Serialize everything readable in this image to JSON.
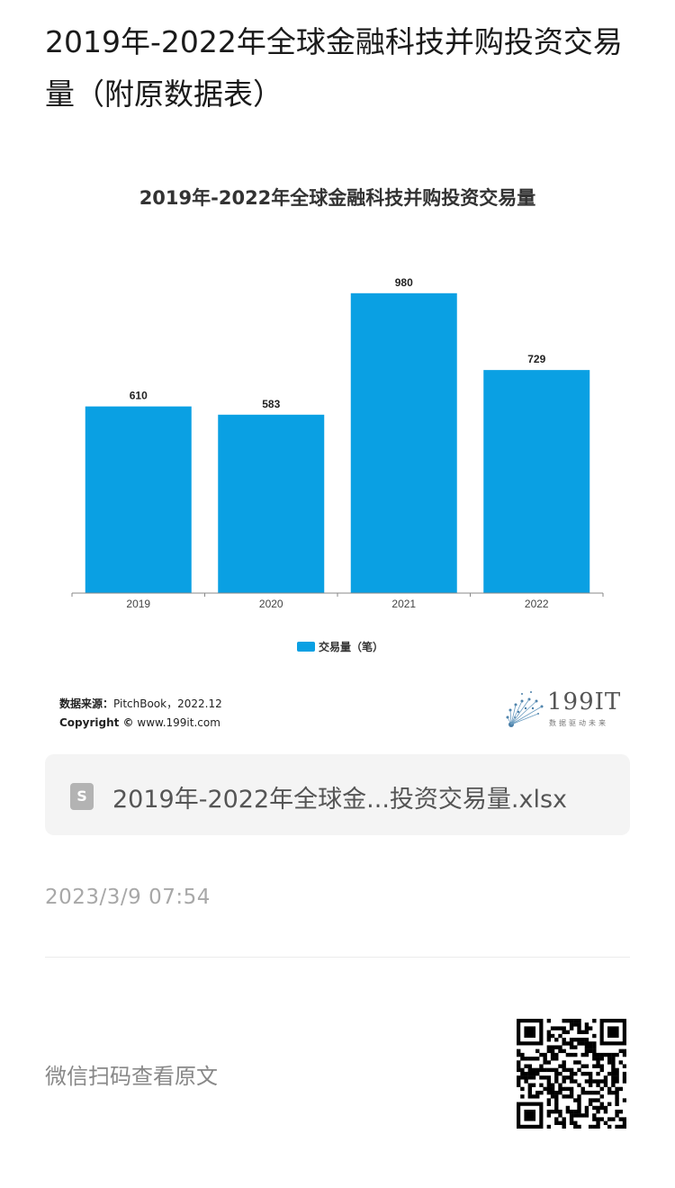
{
  "article": {
    "title": "2019年-2022年全球金融科技并购投资交易量（附原数据表）"
  },
  "chart": {
    "title": "2019年-2022年全球金融科技并购投资交易量",
    "legend_label": "交易量（笔）",
    "source_label": "数据来源：",
    "source_value": "PitchBook，2022.12",
    "copyright_label": "Copyright ©",
    "copyright_value": "www.199it.com",
    "brand_name": "199IT",
    "brand_tagline": "数据驱动未来",
    "bar_color": "#0aa0e3"
  },
  "chart_data": {
    "type": "bar",
    "title": "2019年-2022年全球金融科技并购投资交易量",
    "categories": [
      "2019",
      "2020",
      "2021",
      "2022"
    ],
    "series": [
      {
        "name": "交易量（笔）",
        "values": [
          610,
          583,
          980,
          729
        ]
      }
    ],
    "ylim": [
      0,
      1000
    ],
    "grid": false,
    "legend": "bottom"
  },
  "attachment": {
    "icon": "spreadsheet-file-icon",
    "icon_glyph": "S",
    "file_name": "2019年-2022年全球金...投资交易量.xlsx"
  },
  "meta": {
    "timestamp": "2023/3/9 07:54",
    "scan_label": "微信扫码查看原文"
  }
}
